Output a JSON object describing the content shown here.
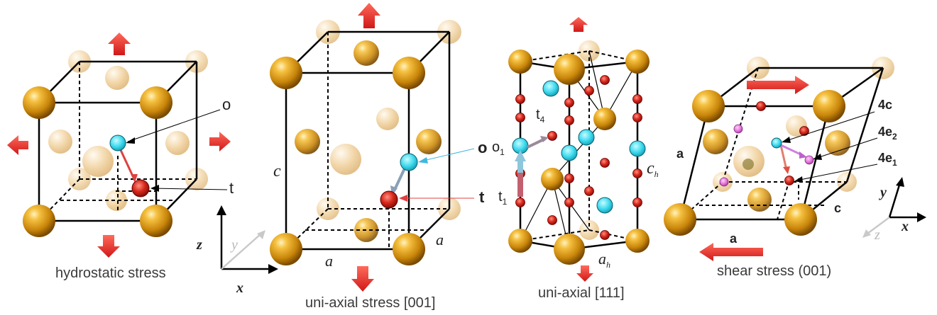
{
  "panels": {
    "hydrostatic": {
      "caption": "hydrostatic stress",
      "label_o": "o",
      "label_t": "t"
    },
    "uniaxial_001": {
      "caption": "uni-axial stress [001]",
      "label_c": "c",
      "label_a_front": "a",
      "label_a_side": "a",
      "label_o": "o",
      "label_t": "t"
    },
    "uniaxial_111": {
      "caption": "uni-axial [111]",
      "label_o": "o",
      "label_o_sub": "1",
      "label_t4": "t",
      "label_t4_sub": "4",
      "label_t1": "t",
      "label_t1_sub": "1",
      "label_ch": "c",
      "label_ch_sub": "h",
      "label_ah": "a",
      "label_ah_sub": "h"
    },
    "shear_001": {
      "caption": "shear stress (001)",
      "label_a_left": "a",
      "label_a_bottom": "a",
      "label_c": "c",
      "label_4c": "4c",
      "label_4e2": "4e",
      "label_4e2_sub": "2",
      "label_4e1": "4e",
      "label_4e1_sub": "1"
    }
  },
  "axes_left": {
    "z": "z",
    "y": "y",
    "x": "x"
  },
  "axes_right": {
    "y": "y",
    "z": "z",
    "x": "x"
  },
  "colors": {
    "atom_gold": "#e0a020",
    "site_cyan": "#40e0f0",
    "site_red": "#cc1a10",
    "arrow_red": "#ee3030",
    "site_magenta": "#e070d8"
  }
}
